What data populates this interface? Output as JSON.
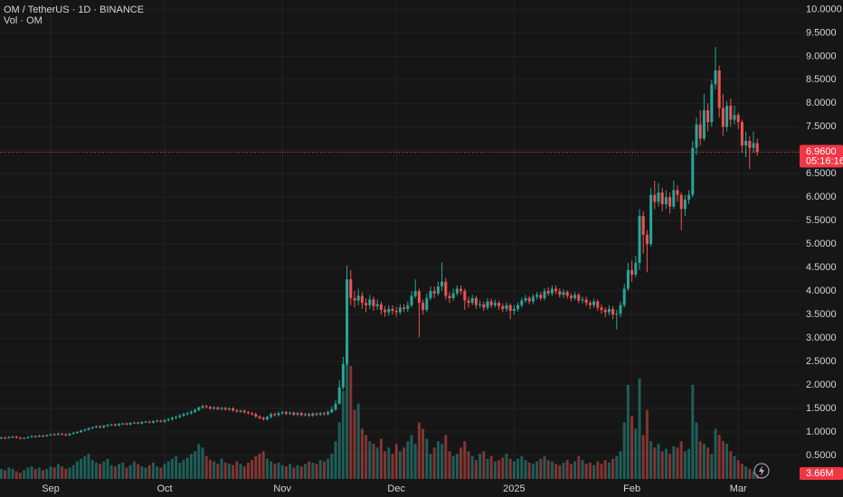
{
  "chart_data": {
    "type": "candlestick",
    "title": "OM / TetherUS · 1D · BINANCE",
    "volume_title": "Vol · OM",
    "up_color": "#26a69a",
    "down_color": "#ef5350",
    "grid": true,
    "ylim": [
      0,
      10.2
    ],
    "yticks": [
      {
        "value": 0.5,
        "label": "0.5000"
      },
      {
        "value": 1,
        "label": "1.0000"
      },
      {
        "value": 1.5,
        "label": "1.5000"
      },
      {
        "value": 2,
        "label": "2.0000"
      },
      {
        "value": 2.5,
        "label": "2.5000"
      },
      {
        "value": 3,
        "label": "3.0000"
      },
      {
        "value": 3.5,
        "label": "3.5000"
      },
      {
        "value": 4,
        "label": "4.0000"
      },
      {
        "value": 4.5,
        "label": "4.5000"
      },
      {
        "value": 5,
        "label": "5.0000"
      },
      {
        "value": 5.5,
        "label": "5.5000"
      },
      {
        "value": 6,
        "label": "6.0000"
      },
      {
        "value": 6.5,
        "label": "6.5000"
      },
      {
        "value": 7,
        "label": "7.0000"
      },
      {
        "value": 7.5,
        "label": "7.5000"
      },
      {
        "value": 8,
        "label": "8.0000"
      },
      {
        "value": 8.5,
        "label": "8.5000"
      },
      {
        "value": 9,
        "label": "9.0000"
      },
      {
        "value": 9.5,
        "label": "9.5000"
      },
      {
        "value": 10,
        "label": "10.0000"
      }
    ],
    "categories": [
      null,
      null,
      null,
      null,
      null,
      null,
      null,
      null,
      null,
      null,
      null,
      null,
      null,
      "Sep",
      null,
      null,
      null,
      null,
      null,
      null,
      null,
      null,
      null,
      null,
      null,
      null,
      null,
      null,
      null,
      null,
      null,
      null,
      null,
      null,
      null,
      null,
      null,
      null,
      null,
      null,
      null,
      null,
      null,
      "Oct",
      null,
      null,
      null,
      null,
      null,
      null,
      null,
      null,
      null,
      null,
      null,
      null,
      null,
      null,
      null,
      null,
      null,
      null,
      null,
      null,
      null,
      null,
      null,
      null,
      null,
      null,
      null,
      null,
      null,
      null,
      "Nov",
      null,
      null,
      null,
      null,
      null,
      null,
      null,
      null,
      null,
      null,
      null,
      null,
      null,
      null,
      null,
      null,
      null,
      null,
      null,
      null,
      null,
      null,
      null,
      null,
      null,
      null,
      null,
      null,
      null,
      "Dec",
      null,
      null,
      null,
      null,
      null,
      null,
      null,
      null,
      null,
      null,
      null,
      null,
      null,
      null,
      null,
      null,
      null,
      null,
      null,
      null,
      null,
      null,
      null,
      null,
      null,
      null,
      null,
      null,
      null,
      null,
      "2025",
      null,
      null,
      null,
      null,
      null,
      null,
      null,
      null,
      null,
      null,
      null,
      null,
      null,
      null,
      null,
      null,
      null,
      null,
      null,
      null,
      null,
      null,
      null,
      null,
      null,
      null,
      null,
      null,
      null,
      null,
      "Feb",
      null,
      null,
      null,
      null,
      null,
      null,
      null,
      null,
      null,
      null,
      null,
      null,
      null,
      null,
      null,
      null,
      null,
      null,
      null,
      null,
      null,
      null,
      null,
      null,
      null,
      null,
      null,
      "Mar",
      null,
      null,
      null,
      null,
      null
    ],
    "open": [
      0.87,
      0.88,
      0.87,
      0.89,
      0.9,
      0.88,
      0.86,
      0.87,
      0.89,
      0.91,
      0.9,
      0.92,
      0.91,
      0.93,
      0.95,
      0.94,
      0.96,
      0.95,
      0.93,
      0.96,
      0.98,
      1.0,
      1.03,
      1.05,
      1.08,
      1.1,
      1.12,
      1.1,
      1.13,
      1.15,
      1.16,
      1.14,
      1.17,
      1.18,
      1.16,
      1.19,
      1.2,
      1.18,
      1.21,
      1.22,
      1.2,
      1.23,
      1.24,
      1.22,
      1.25,
      1.27,
      1.3,
      1.32,
      1.35,
      1.38,
      1.4,
      1.43,
      1.47,
      1.52,
      1.55,
      1.53,
      1.5,
      1.52,
      1.49,
      1.51,
      1.48,
      1.5,
      1.46,
      1.44,
      1.45,
      1.42,
      1.4,
      1.38,
      1.33,
      1.3,
      1.27,
      1.32,
      1.38,
      1.36,
      1.4,
      1.42,
      1.39,
      1.41,
      1.37,
      1.4,
      1.36,
      1.38,
      1.35,
      1.39,
      1.37,
      1.4,
      1.38,
      1.42,
      1.48,
      1.6,
      1.95,
      2.45,
      4.25,
      3.85,
      3.8,
      3.9,
      3.75,
      3.7,
      3.82,
      3.68,
      3.72,
      3.6,
      3.55,
      3.62,
      3.58,
      3.55,
      3.65,
      3.62,
      3.7,
      3.9,
      4.0,
      3.75,
      3.6,
      3.85,
      4.0,
      3.95,
      4.1,
      4.2,
      3.9,
      3.85,
      3.95,
      4.05,
      4.0,
      3.8,
      3.75,
      3.85,
      3.7,
      3.72,
      3.65,
      3.78,
      3.7,
      3.75,
      3.68,
      3.62,
      3.7,
      3.58,
      3.62,
      3.7,
      3.8,
      3.85,
      3.78,
      3.88,
      3.92,
      3.85,
      4.0,
      3.95,
      4.05,
      4.0,
      3.92,
      3.98,
      3.9,
      3.85,
      3.92,
      3.8,
      3.82,
      3.75,
      3.7,
      3.78,
      3.65,
      3.6,
      3.55,
      3.62,
      3.5,
      3.52,
      3.7,
      4.05,
      4.45,
      4.35,
      4.6,
      5.6,
      5.2,
      5.0,
      6.05,
      5.9,
      6.1,
      5.85,
      6.0,
      5.8,
      6.15,
      6.05,
      5.75,
      5.95,
      6.05,
      7.05,
      7.55,
      7.25,
      7.85,
      7.6,
      8.4,
      8.7,
      7.9,
      7.5,
      7.95,
      7.65,
      7.75,
      7.6,
      7.1,
      7.2,
      7.05,
      7.15
    ],
    "high": [
      0.9,
      0.9,
      0.91,
      0.92,
      0.92,
      0.89,
      0.89,
      0.91,
      0.93,
      0.93,
      0.94,
      0.94,
      0.95,
      0.97,
      0.97,
      0.98,
      0.98,
      0.97,
      0.98,
      1.0,
      1.02,
      1.05,
      1.07,
      1.1,
      1.12,
      1.14,
      1.14,
      1.15,
      1.17,
      1.18,
      1.18,
      1.19,
      1.2,
      1.2,
      1.21,
      1.22,
      1.22,
      1.23,
      1.24,
      1.24,
      1.25,
      1.26,
      1.26,
      1.28,
      1.3,
      1.33,
      1.35,
      1.38,
      1.41,
      1.43,
      1.46,
      1.5,
      1.55,
      1.58,
      1.58,
      1.56,
      1.55,
      1.55,
      1.54,
      1.54,
      1.53,
      1.53,
      1.49,
      1.48,
      1.48,
      1.45,
      1.43,
      1.41,
      1.36,
      1.33,
      1.35,
      1.41,
      1.41,
      1.43,
      1.45,
      1.45,
      1.44,
      1.44,
      1.43,
      1.43,
      1.41,
      1.41,
      1.42,
      1.42,
      1.43,
      1.43,
      1.46,
      1.55,
      1.68,
      2.1,
      2.6,
      4.55,
      4.45,
      4.0,
      4.05,
      3.98,
      3.85,
      3.92,
      3.88,
      3.82,
      3.78,
      3.68,
      3.7,
      3.7,
      3.66,
      3.72,
      3.72,
      3.78,
      4.0,
      4.25,
      4.05,
      3.82,
      3.95,
      4.1,
      4.1,
      4.2,
      4.62,
      4.28,
      3.98,
      4.05,
      4.12,
      4.12,
      4.05,
      3.88,
      3.92,
      3.9,
      3.8,
      3.78,
      3.85,
      3.84,
      3.82,
      3.8,
      3.74,
      3.76,
      3.74,
      3.7,
      3.76,
      3.86,
      3.92,
      3.9,
      3.94,
      3.98,
      3.98,
      4.06,
      4.08,
      4.12,
      4.12,
      4.06,
      4.04,
      4.02,
      3.96,
      3.98,
      3.96,
      3.88,
      3.88,
      3.8,
      3.84,
      3.82,
      3.72,
      3.66,
      3.7,
      3.68,
      3.6,
      3.78,
      4.15,
      4.6,
      4.65,
      4.75,
      5.75,
      5.7,
      5.3,
      6.2,
      6.35,
      6.3,
      6.2,
      6.15,
      6.1,
      6.35,
      6.25,
      6.1,
      6.05,
      6.15,
      7.2,
      7.7,
      7.85,
      8.2,
      8.0,
      8.5,
      9.2,
      8.8,
      8.2,
      8.05,
      8.1,
      7.95,
      7.8,
      7.65,
      7.4,
      7.3,
      7.4,
      7.25
    ],
    "low": [
      0.85,
      0.85,
      0.86,
      0.87,
      0.86,
      0.84,
      0.85,
      0.86,
      0.88,
      0.88,
      0.89,
      0.89,
      0.9,
      0.92,
      0.92,
      0.92,
      0.93,
      0.91,
      0.91,
      0.94,
      0.96,
      0.98,
      1.01,
      1.03,
      1.06,
      1.08,
      1.08,
      1.08,
      1.11,
      1.13,
      1.12,
      1.12,
      1.15,
      1.14,
      1.14,
      1.17,
      1.16,
      1.16,
      1.19,
      1.18,
      1.18,
      1.21,
      1.2,
      1.19,
      1.22,
      1.24,
      1.27,
      1.29,
      1.32,
      1.35,
      1.37,
      1.4,
      1.44,
      1.49,
      1.5,
      1.47,
      1.47,
      1.46,
      1.46,
      1.45,
      1.45,
      1.43,
      1.41,
      1.41,
      1.39,
      1.37,
      1.35,
      1.3,
      1.27,
      1.24,
      1.24,
      1.29,
      1.33,
      1.33,
      1.37,
      1.36,
      1.36,
      1.34,
      1.34,
      1.33,
      1.33,
      1.32,
      1.32,
      1.34,
      1.34,
      1.35,
      1.35,
      1.4,
      1.45,
      1.58,
      1.9,
      2.4,
      3.7,
      3.65,
      3.7,
      3.62,
      3.55,
      3.62,
      3.58,
      3.6,
      3.5,
      3.45,
      3.48,
      3.5,
      3.46,
      3.5,
      3.55,
      3.56,
      3.65,
      3.85,
      3.02,
      3.5,
      3.55,
      3.8,
      3.85,
      3.9,
      4.0,
      3.82,
      3.75,
      3.8,
      3.9,
      3.92,
      3.6,
      3.65,
      3.7,
      3.62,
      3.64,
      3.58,
      3.6,
      3.64,
      3.65,
      3.6,
      3.55,
      3.56,
      3.4,
      3.5,
      3.56,
      3.65,
      3.75,
      3.72,
      3.72,
      3.82,
      3.8,
      3.8,
      3.9,
      3.9,
      3.94,
      3.86,
      3.86,
      3.84,
      3.78,
      3.8,
      3.74,
      3.74,
      3.68,
      3.62,
      3.64,
      3.58,
      3.52,
      3.45,
      3.48,
      3.4,
      3.18,
      3.45,
      3.65,
      4.0,
      4.2,
      4.3,
      4.45,
      4.8,
      4.4,
      4.95,
      5.75,
      5.8,
      5.7,
      5.75,
      5.65,
      5.75,
      5.9,
      5.3,
      5.6,
      5.85,
      6.0,
      6.9,
      7.1,
      7.2,
      7.4,
      7.5,
      8.3,
      7.7,
      7.3,
      7.4,
      7.5,
      7.55,
      7.45,
      6.95,
      6.85,
      6.6,
      6.95,
      6.88
    ],
    "close": [
      0.88,
      0.87,
      0.89,
      0.9,
      0.88,
      0.86,
      0.87,
      0.89,
      0.91,
      0.9,
      0.92,
      0.91,
      0.93,
      0.95,
      0.94,
      0.96,
      0.95,
      0.93,
      0.96,
      0.98,
      1.0,
      1.03,
      1.05,
      1.08,
      1.1,
      1.12,
      1.1,
      1.13,
      1.15,
      1.16,
      1.14,
      1.17,
      1.18,
      1.16,
      1.19,
      1.2,
      1.18,
      1.21,
      1.22,
      1.2,
      1.23,
      1.24,
      1.22,
      1.25,
      1.27,
      1.3,
      1.32,
      1.35,
      1.38,
      1.4,
      1.43,
      1.47,
      1.52,
      1.55,
      1.53,
      1.5,
      1.52,
      1.49,
      1.51,
      1.48,
      1.5,
      1.46,
      1.44,
      1.45,
      1.42,
      1.4,
      1.38,
      1.33,
      1.3,
      1.27,
      1.32,
      1.38,
      1.36,
      1.4,
      1.42,
      1.39,
      1.41,
      1.37,
      1.4,
      1.36,
      1.38,
      1.35,
      1.39,
      1.37,
      1.4,
      1.38,
      1.42,
      1.48,
      1.6,
      1.95,
      2.45,
      4.25,
      3.85,
      3.8,
      3.9,
      3.75,
      3.7,
      3.82,
      3.68,
      3.72,
      3.6,
      3.55,
      3.62,
      3.58,
      3.55,
      3.65,
      3.62,
      3.7,
      3.9,
      4.0,
      3.75,
      3.6,
      3.85,
      4.0,
      3.95,
      4.1,
      4.2,
      3.9,
      3.85,
      3.95,
      4.05,
      4.0,
      3.8,
      3.75,
      3.85,
      3.7,
      3.72,
      3.65,
      3.78,
      3.7,
      3.75,
      3.68,
      3.62,
      3.7,
      3.58,
      3.62,
      3.7,
      3.8,
      3.85,
      3.78,
      3.88,
      3.92,
      3.85,
      4.0,
      3.95,
      4.05,
      4.0,
      3.92,
      3.98,
      3.9,
      3.85,
      3.92,
      3.8,
      3.82,
      3.75,
      3.7,
      3.78,
      3.65,
      3.6,
      3.55,
      3.62,
      3.5,
      3.52,
      3.7,
      4.05,
      4.45,
      4.35,
      4.6,
      5.6,
      5.2,
      5.0,
      6.05,
      5.9,
      6.1,
      5.85,
      6.0,
      5.8,
      6.15,
      6.05,
      5.75,
      5.95,
      6.05,
      7.05,
      7.55,
      7.25,
      7.85,
      7.6,
      8.4,
      8.7,
      7.9,
      7.5,
      7.95,
      7.65,
      7.75,
      7.6,
      7.1,
      7.2,
      7.05,
      7.15,
      6.96
    ],
    "volume": [
      8000000,
      7000000,
      9000000,
      8000000,
      6000000,
      5000000,
      7000000,
      9000000,
      10000000,
      8000000,
      9000000,
      7000000,
      8000000,
      10000000,
      9000000,
      12000000,
      10000000,
      8000000,
      9000000,
      11000000,
      14000000,
      16000000,
      18000000,
      20000000,
      15000000,
      13000000,
      12000000,
      14000000,
      16000000,
      11000000,
      10000000,
      12000000,
      13000000,
      9000000,
      11000000,
      14000000,
      12000000,
      10000000,
      9000000,
      11000000,
      13000000,
      10000000,
      9000000,
      12000000,
      14000000,
      16000000,
      18000000,
      13000000,
      15000000,
      17000000,
      20000000,
      22000000,
      28000000,
      25000000,
      18000000,
      15000000,
      14000000,
      12000000,
      16000000,
      13000000,
      12000000,
      11000000,
      14000000,
      12000000,
      10000000,
      13000000,
      15000000,
      18000000,
      20000000,
      22000000,
      16000000,
      14000000,
      12000000,
      13000000,
      11000000,
      10000000,
      12000000,
      9000000,
      11000000,
      10000000,
      12000000,
      14000000,
      13000000,
      12000000,
      15000000,
      14000000,
      16000000,
      20000000,
      30000000,
      45000000,
      70000000,
      108000000,
      90000000,
      55000000,
      60000000,
      40000000,
      35000000,
      30000000,
      28000000,
      25000000,
      32000000,
      22000000,
      25000000,
      20000000,
      28000000,
      22000000,
      25000000,
      30000000,
      35000000,
      28000000,
      45000000,
      40000000,
      32000000,
      20000000,
      25000000,
      30000000,
      28000000,
      35000000,
      22000000,
      18000000,
      20000000,
      25000000,
      30000000,
      22000000,
      18000000,
      15000000,
      20000000,
      22000000,
      16000000,
      18000000,
      14000000,
      15000000,
      17000000,
      20000000,
      16000000,
      14000000,
      16000000,
      18000000,
      15000000,
      13000000,
      12000000,
      14000000,
      16000000,
      18000000,
      15000000,
      14000000,
      12000000,
      11000000,
      13000000,
      15000000,
      12000000,
      14000000,
      18000000,
      15000000,
      12000000,
      13000000,
      11000000,
      14000000,
      12000000,
      15000000,
      13000000,
      16000000,
      18000000,
      22000000,
      45000000,
      75000000,
      50000000,
      40000000,
      80000000,
      35000000,
      55000000,
      30000000,
      25000000,
      28000000,
      22000000,
      24000000,
      20000000,
      26000000,
      25000000,
      30000000,
      22000000,
      24000000,
      75000000,
      45000000,
      30000000,
      28000000,
      25000000,
      20000000,
      40000000,
      35000000,
      30000000,
      28000000,
      22000000,
      18000000,
      15000000,
      12000000,
      10000000,
      8000000,
      6000000,
      3660000
    ],
    "price_tag": {
      "value": 6.96,
      "label": "6.9600"
    },
    "countdown": "05:16:16",
    "volume_tag": {
      "value": 3660000,
      "label": "3.66M"
    }
  }
}
